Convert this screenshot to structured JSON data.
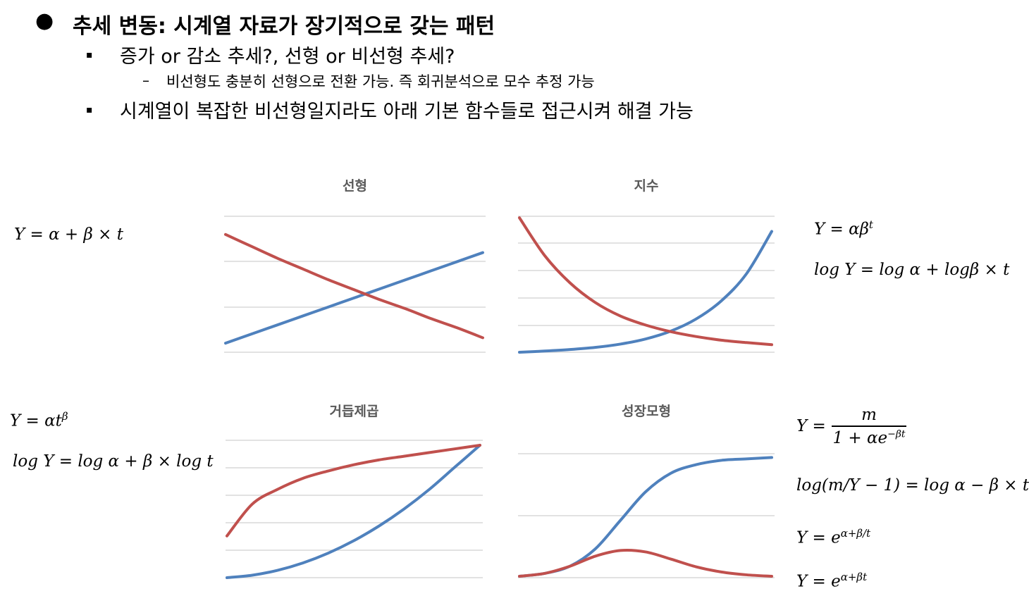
{
  "heading": {
    "bullet": "●",
    "title": "추세 변동: 시계열 자료가 장기적으로 갖는 패턴"
  },
  "items": [
    {
      "marker": "▪",
      "text": "증가 or 감소 추세?, 선형 or 비선형 추세?"
    },
    {
      "marker": "–",
      "text": "비선형도 충분히 선형으로 전환 가능. 즉 회귀분석으로 모수 추정 가능"
    },
    {
      "marker": "▪",
      "text": "시계열이 복잡한 비선형일지라도 아래 기본 함수들로 접근시켜 해결 가능"
    }
  ],
  "equations": {
    "linear": "Y = α + β × t",
    "exp_1": "Y = αβ",
    "exp_1_sup": "t",
    "exp_2": "log Y = log α + logβ × t",
    "power_1": "Y = αt",
    "power_1_sup": "β",
    "power_2": "log Y = log α + β × log t",
    "growth_lhs": "Y =",
    "growth_num": "m",
    "growth_den": "1 + αe",
    "growth_den_sup": "−βt",
    "growth_log": "log(m/Y − 1) = log α − β × t",
    "growth_3": "Y = e",
    "growth_3_sup": "α+β/t",
    "growth_4": "Y = e",
    "growth_4_sup": "α+βt"
  },
  "chart_data": [
    {
      "type": "line",
      "title": "선형",
      "x": [
        0,
        1,
        2,
        3,
        4,
        5,
        6,
        7,
        8,
        9,
        10
      ],
      "series": [
        {
          "color": "#4f81bd",
          "values": [
            1.0,
            2.0,
            3.0,
            4.0,
            5.0,
            6.0,
            7.0,
            8.0,
            9.0,
            10.0,
            11.0
          ]
        },
        {
          "color": "#c0504d",
          "values": [
            13.0,
            11.7,
            10.4,
            9.2,
            8.0,
            6.9,
            5.8,
            4.8,
            3.7,
            2.7,
            1.6
          ]
        }
      ]
    },
    {
      "type": "line",
      "title": "지수",
      "x": [
        0,
        1,
        2,
        3,
        4,
        5,
        6,
        7,
        8,
        9,
        10
      ],
      "series": [
        {
          "color": "#4f81bd",
          "values": [
            0.0,
            0.04,
            0.09,
            0.16,
            0.27,
            0.44,
            0.7,
            1.1,
            1.7,
            2.6,
            4.0
          ]
        },
        {
          "color": "#c0504d",
          "values": [
            4.45,
            3.2,
            2.3,
            1.65,
            1.2,
            0.9,
            0.68,
            0.52,
            0.4,
            0.32,
            0.25
          ]
        }
      ]
    },
    {
      "type": "line",
      "title": "거듭제곱",
      "x": [
        0,
        1,
        2,
        3,
        4,
        5,
        6,
        7,
        8,
        9,
        10
      ],
      "series": [
        {
          "color": "#4f81bd",
          "values": [
            0.0,
            0.1,
            0.3,
            0.6,
            1.0,
            1.5,
            2.1,
            2.8,
            3.6,
            4.5,
            5.4
          ]
        },
        {
          "color": "#c0504d",
          "values": [
            1.7,
            3.0,
            3.6,
            4.05,
            4.35,
            4.6,
            4.8,
            4.95,
            5.1,
            5.25,
            5.4
          ]
        }
      ]
    },
    {
      "type": "line",
      "title": "성장모형",
      "x": [
        0,
        1,
        2,
        3,
        4,
        5,
        6,
        7,
        8,
        9,
        10
      ],
      "series": [
        {
          "color": "#4f81bd",
          "values": [
            0.05,
            0.15,
            0.4,
            1.0,
            2.0,
            3.0,
            3.65,
            3.95,
            4.1,
            4.15,
            4.2
          ]
        },
        {
          "color": "#c0504d",
          "values": [
            0.05,
            0.15,
            0.4,
            0.75,
            0.95,
            0.9,
            0.65,
            0.38,
            0.2,
            0.1,
            0.05
          ]
        }
      ]
    }
  ]
}
